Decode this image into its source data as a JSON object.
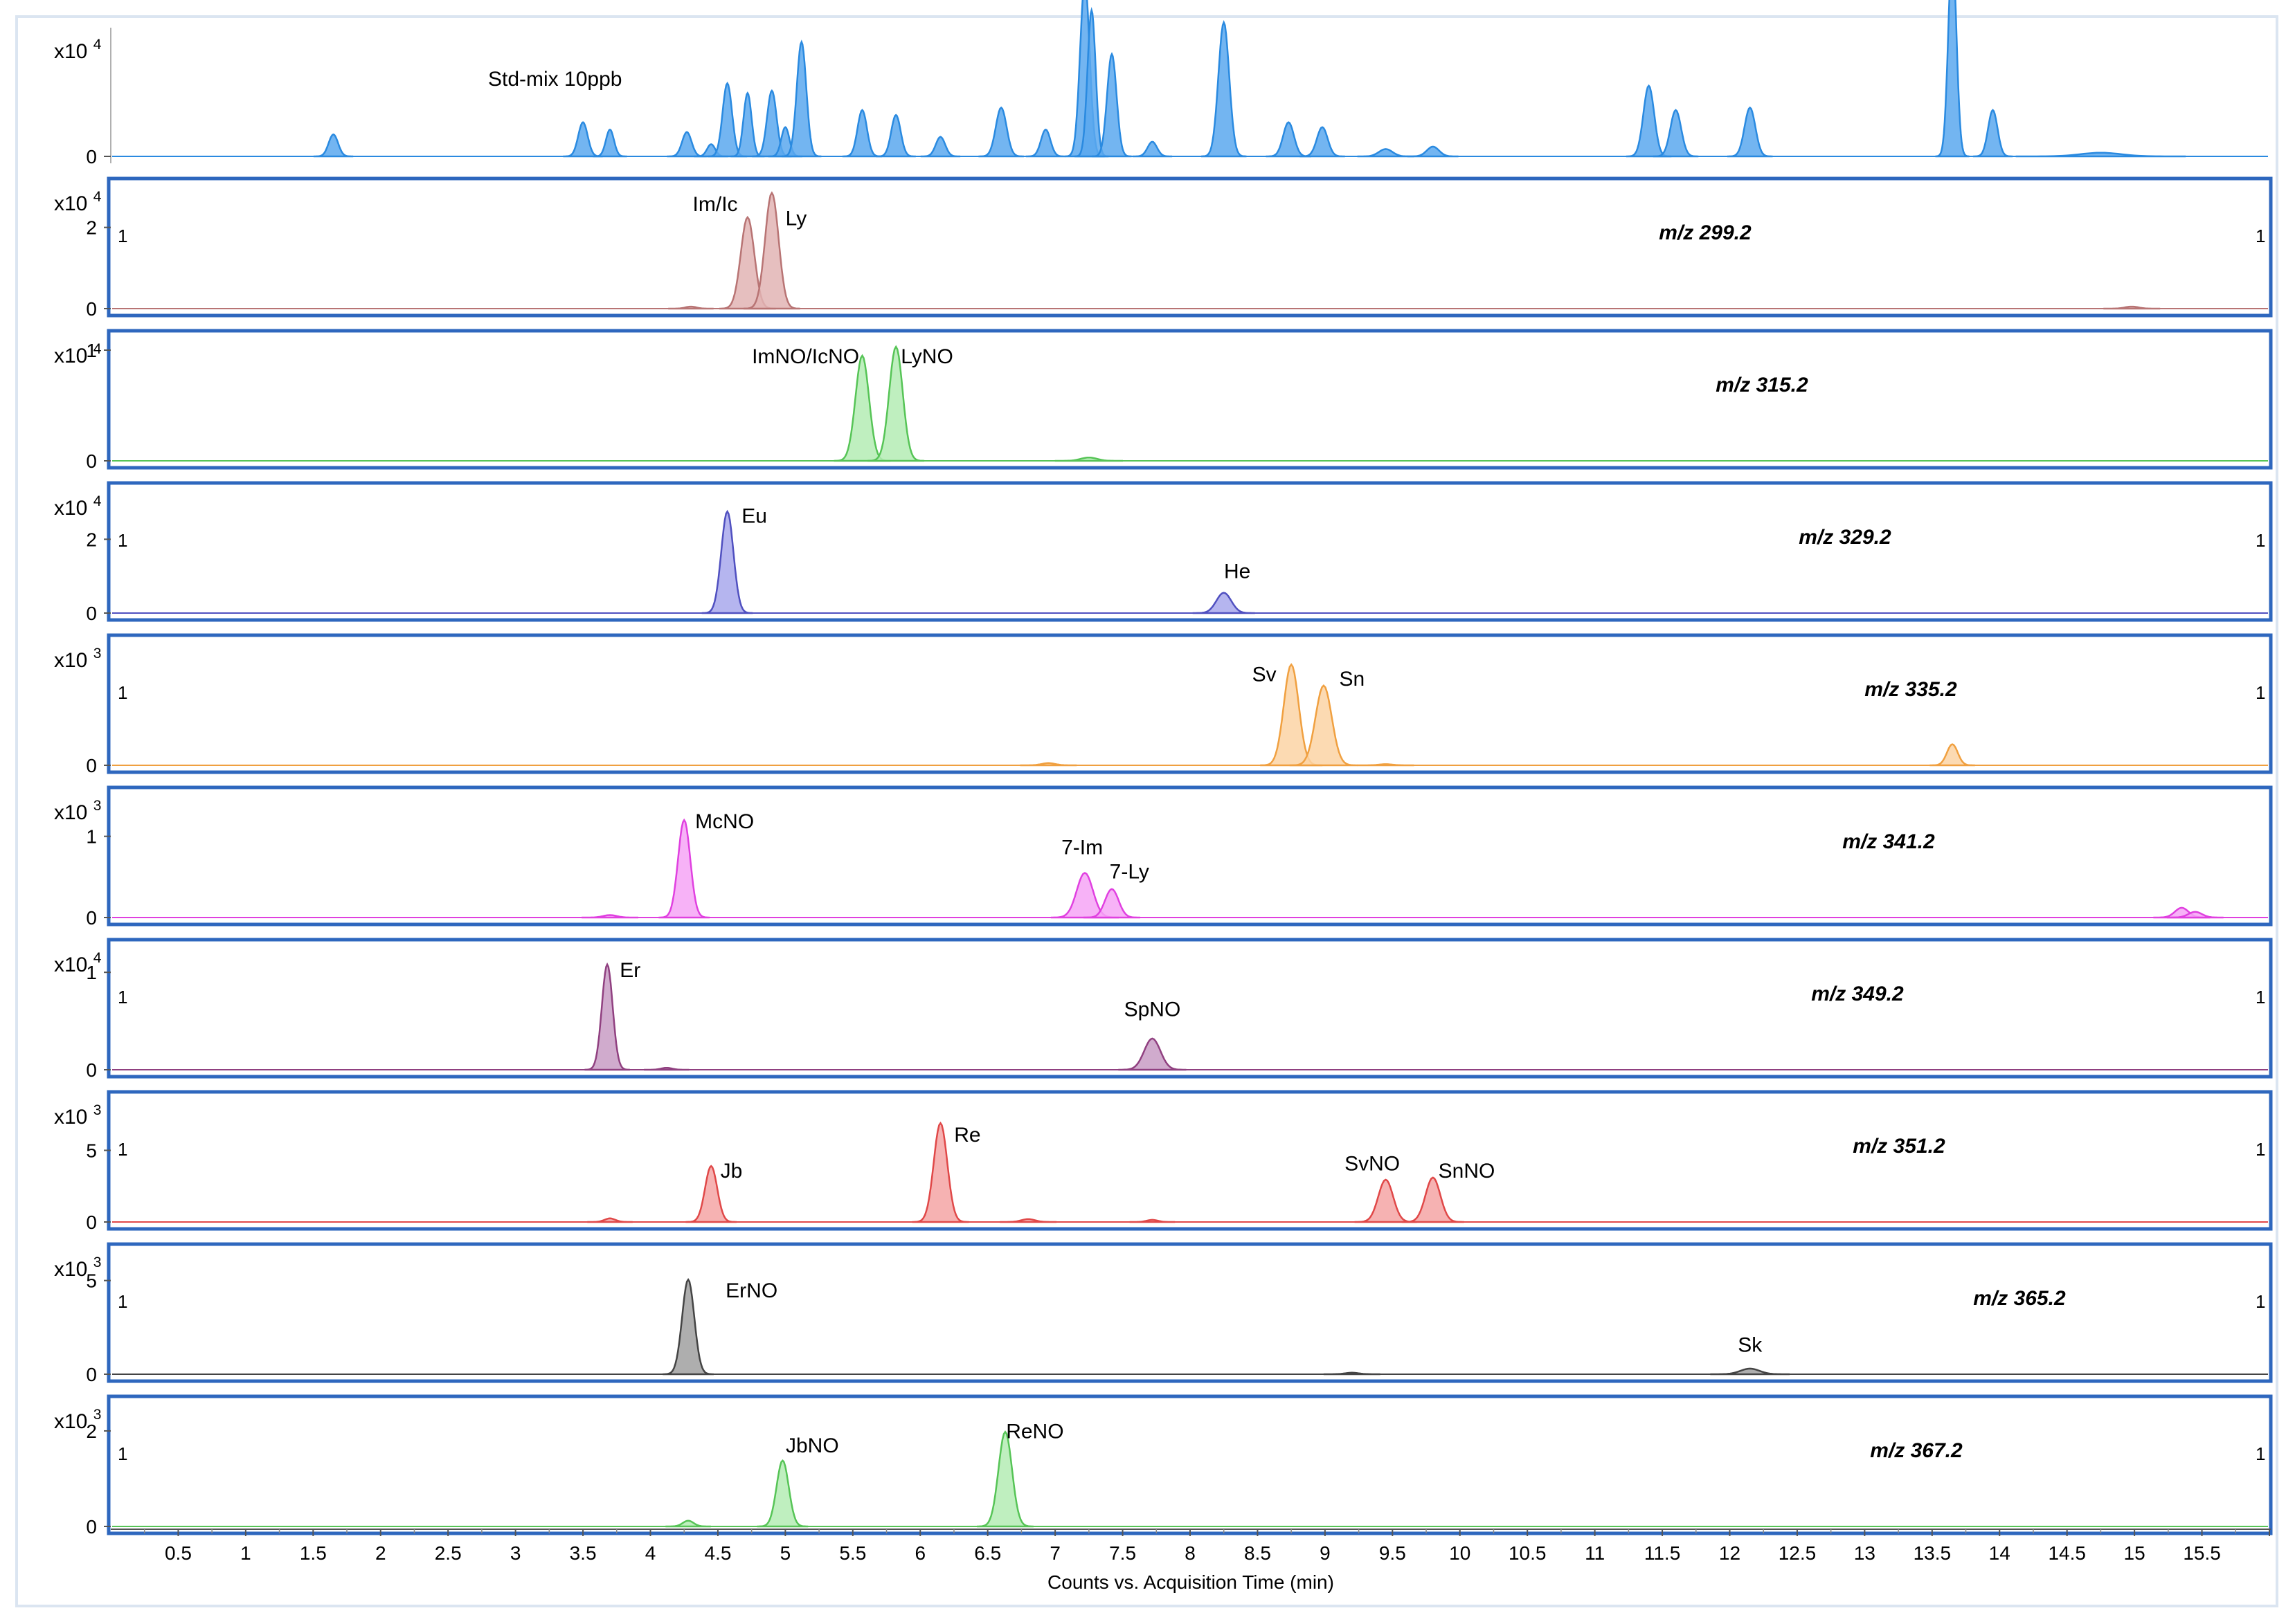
{
  "chart_data": {
    "type": "line",
    "title": "",
    "xlabel": "Counts vs. Acquisition Time (min)",
    "xlim": [
      0,
      16.0
    ],
    "x_ticks": [
      "0.5",
      "1",
      "1.5",
      "2",
      "2.5",
      "3",
      "3.5",
      "4",
      "4.5",
      "5",
      "5.5",
      "6",
      "6.5",
      "7",
      "7.5",
      "8",
      "8.5",
      "9",
      "9.5",
      "10",
      "10.5",
      "11",
      "11.5",
      "12",
      "12.5",
      "13",
      "13.5",
      "14",
      "14.5",
      "15",
      "15.5"
    ],
    "colors": {
      "frame": "#dbe5f1",
      "panel_border": "#2e67be",
      "tic": "#2a8ae0",
      "label": "#000000"
    },
    "panels": [
      {
        "label": "Std-mix 10ppb",
        "mz": "",
        "exp": "4",
        "color": "#2a8ae0",
        "fill": "#5aa8ee",
        "ymax": 5,
        "yticks": [
          0
        ],
        "bordered": false,
        "marker": "",
        "peaks": [
          {
            "rt": 1.65,
            "h": 0.9,
            "w": 0.035
          },
          {
            "rt": 3.5,
            "h": 1.4,
            "w": 0.035
          },
          {
            "rt": 3.7,
            "h": 1.1,
            "w": 0.03
          },
          {
            "rt": 4.27,
            "h": 1.0,
            "w": 0.035
          },
          {
            "rt": 4.45,
            "h": 0.5,
            "w": 0.03
          },
          {
            "rt": 4.57,
            "h": 3.0,
            "w": 0.035
          },
          {
            "rt": 4.72,
            "h": 2.6,
            "w": 0.03
          },
          {
            "rt": 4.9,
            "h": 2.7,
            "w": 0.035
          },
          {
            "rt": 5.0,
            "h": 1.2,
            "w": 0.03
          },
          {
            "rt": 5.12,
            "h": 4.7,
            "w": 0.035
          },
          {
            "rt": 5.57,
            "h": 1.9,
            "w": 0.035
          },
          {
            "rt": 5.82,
            "h": 1.7,
            "w": 0.035
          },
          {
            "rt": 6.15,
            "h": 0.8,
            "w": 0.035
          },
          {
            "rt": 6.6,
            "h": 2.0,
            "w": 0.04
          },
          {
            "rt": 6.93,
            "h": 1.1,
            "w": 0.035
          },
          {
            "rt": 7.22,
            "h": 7.2,
            "w": 0.035
          },
          {
            "rt": 7.27,
            "h": 6.0,
            "w": 0.03
          },
          {
            "rt": 7.42,
            "h": 4.2,
            "w": 0.035
          },
          {
            "rt": 7.72,
            "h": 0.6,
            "w": 0.035
          },
          {
            "rt": 8.25,
            "h": 5.5,
            "w": 0.04
          },
          {
            "rt": 8.73,
            "h": 1.4,
            "w": 0.04
          },
          {
            "rt": 8.98,
            "h": 1.2,
            "w": 0.04
          },
          {
            "rt": 9.45,
            "h": 0.3,
            "w": 0.05
          },
          {
            "rt": 9.8,
            "h": 0.4,
            "w": 0.045
          },
          {
            "rt": 11.4,
            "h": 2.9,
            "w": 0.04
          },
          {
            "rt": 11.6,
            "h": 1.9,
            "w": 0.04
          },
          {
            "rt": 12.15,
            "h": 2.0,
            "w": 0.04
          },
          {
            "rt": 13.65,
            "h": 8.5,
            "w": 0.03
          },
          {
            "rt": 13.95,
            "h": 1.9,
            "w": 0.035
          },
          {
            "rt": 14.75,
            "h": 0.15,
            "w": 0.15
          }
        ],
        "annotations": []
      },
      {
        "label": "",
        "mz": "m/z 299.2",
        "exp": "4",
        "color": "#b87474",
        "fill": "#e2b4b4",
        "ymax": 3,
        "yticks": [
          2,
          0
        ],
        "bordered": true,
        "marker": "1",
        "peaks": [
          {
            "rt": 4.3,
            "h": 0.05,
            "w": 0.04
          },
          {
            "rt": 4.72,
            "h": 2.25,
            "w": 0.05
          },
          {
            "rt": 4.9,
            "h": 2.85,
            "w": 0.05
          },
          {
            "rt": 14.98,
            "h": 0.05,
            "w": 0.05
          }
        ],
        "annotations": [
          {
            "text": "Im/Ic",
            "rt": 4.48,
            "y": 2.4
          },
          {
            "text": "Ly",
            "rt": 5.08,
            "y": 2.05
          }
        ]
      },
      {
        "label": "",
        "mz": "m/z 315.2",
        "exp": "4",
        "color": "#56c456",
        "fill": "#b4ecb4",
        "ymax": 1.1,
        "yticks": [
          1,
          0
        ],
        "bordered": true,
        "marker": "",
        "peaks": [
          {
            "rt": 5.57,
            "h": 0.95,
            "w": 0.05
          },
          {
            "rt": 5.82,
            "h": 1.03,
            "w": 0.05
          },
          {
            "rt": 7.25,
            "h": 0.03,
            "w": 0.06
          }
        ],
        "annotations": [
          {
            "text": "ImNO/IcNO",
            "rt": 5.15,
            "y": 0.88
          },
          {
            "text": "LyNO",
            "rt": 6.05,
            "y": 0.88
          }
        ]
      },
      {
        "label": "",
        "mz": "m/z 329.2",
        "exp": "4",
        "color": "#5050c0",
        "fill": "#a8a8ec",
        "ymax": 3.3,
        "yticks": [
          2,
          0
        ],
        "bordered": true,
        "marker": "1",
        "peaks": [
          {
            "rt": 4.57,
            "h": 2.75,
            "w": 0.045
          },
          {
            "rt": 8.25,
            "h": 0.55,
            "w": 0.055
          }
        ],
        "annotations": [
          {
            "text": "Eu",
            "rt": 4.77,
            "y": 2.45
          },
          {
            "text": "He",
            "rt": 8.35,
            "y": 0.95
          }
        ]
      },
      {
        "label": "",
        "mz": "m/z 335.2",
        "exp": "3",
        "color": "#f0a040",
        "fill": "#fbd4a4",
        "ymax": 5.5,
        "yticks": [
          0
        ],
        "bordered": true,
        "marker": "1",
        "peaks": [
          {
            "rt": 6.95,
            "h": 0.1,
            "w": 0.05
          },
          {
            "rt": 8.75,
            "h": 4.55,
            "w": 0.055
          },
          {
            "rt": 8.99,
            "h": 3.6,
            "w": 0.06
          },
          {
            "rt": 9.45,
            "h": 0.05,
            "w": 0.05
          },
          {
            "rt": 13.65,
            "h": 0.95,
            "w": 0.04
          }
        ],
        "annotations": [
          {
            "text": "Sv",
            "rt": 8.55,
            "y": 3.8
          },
          {
            "text": "Sn",
            "rt": 9.2,
            "y": 3.6
          }
        ]
      },
      {
        "label": "",
        "mz": "m/z 341.2",
        "exp": "3",
        "color": "#e040e0",
        "fill": "#f6a4f6",
        "ymax": 1.5,
        "yticks": [
          1,
          0
        ],
        "bordered": true,
        "marker": "",
        "peaks": [
          {
            "rt": 3.7,
            "h": 0.03,
            "w": 0.05
          },
          {
            "rt": 4.25,
            "h": 1.2,
            "w": 0.045
          },
          {
            "rt": 7.22,
            "h": 0.55,
            "w": 0.06
          },
          {
            "rt": 7.42,
            "h": 0.35,
            "w": 0.05
          },
          {
            "rt": 15.35,
            "h": 0.12,
            "w": 0.05
          },
          {
            "rt": 15.45,
            "h": 0.07,
            "w": 0.05
          }
        ],
        "annotations": [
          {
            "text": "McNO",
            "rt": 4.55,
            "y": 1.1
          },
          {
            "text": "7-Im",
            "rt": 7.2,
            "y": 0.78
          },
          {
            "text": "7-Ly",
            "rt": 7.55,
            "y": 0.48
          }
        ]
      },
      {
        "label": "",
        "mz": "m/z 349.2",
        "exp": "4",
        "color": "#904080",
        "fill": "#c89cc4",
        "ymax": 1.25,
        "yticks": [
          1,
          0
        ],
        "bordered": true,
        "marker": "1",
        "peaks": [
          {
            "rt": 3.68,
            "h": 1.08,
            "w": 0.04
          },
          {
            "rt": 4.12,
            "h": 0.02,
            "w": 0.04
          },
          {
            "rt": 7.72,
            "h": 0.32,
            "w": 0.06
          }
        ],
        "annotations": [
          {
            "text": "Er",
            "rt": 3.85,
            "y": 0.95
          },
          {
            "text": "SpNO",
            "rt": 7.72,
            "y": 0.55
          }
        ]
      },
      {
        "label": "",
        "mz": "m/z 351.2",
        "exp": "3",
        "color": "#e04848",
        "fill": "#f4a4a4",
        "ymax": 8.5,
        "yticks": [
          5,
          0
        ],
        "bordered": true,
        "marker": "1",
        "peaks": [
          {
            "rt": 3.7,
            "h": 0.25,
            "w": 0.04
          },
          {
            "rt": 4.45,
            "h": 3.9,
            "w": 0.045
          },
          {
            "rt": 6.15,
            "h": 6.9,
            "w": 0.05
          },
          {
            "rt": 6.8,
            "h": 0.2,
            "w": 0.05
          },
          {
            "rt": 7.72,
            "h": 0.15,
            "w": 0.04
          },
          {
            "rt": 9.45,
            "h": 2.95,
            "w": 0.055
          },
          {
            "rt": 9.8,
            "h": 3.1,
            "w": 0.055
          }
        ],
        "annotations": [
          {
            "text": "Jb",
            "rt": 4.6,
            "y": 3.1
          },
          {
            "text": "Re",
            "rt": 6.35,
            "y": 5.6
          },
          {
            "text": "SvNO",
            "rt": 9.35,
            "y": 3.6
          },
          {
            "text": "SnNO",
            "rt": 10.05,
            "y": 3.1
          }
        ]
      },
      {
        "label": "",
        "mz": "m/z 365.2",
        "exp": "3",
        "color": "#444444",
        "fill": "#a0a0a0",
        "ymax": 6.5,
        "yticks": [
          5,
          0
        ],
        "bordered": true,
        "marker": "1",
        "peaks": [
          {
            "rt": 4.28,
            "h": 5.05,
            "w": 0.045
          },
          {
            "rt": 9.2,
            "h": 0.08,
            "w": 0.05
          },
          {
            "rt": 12.15,
            "h": 0.3,
            "w": 0.07
          }
        ],
        "annotations": [
          {
            "text": "ErNO",
            "rt": 4.75,
            "y": 4.1
          },
          {
            "text": "Sk",
            "rt": 12.15,
            "y": 1.2
          }
        ]
      },
      {
        "label": "",
        "mz": "m/z 367.2",
        "exp": "3",
        "color": "#56c456",
        "fill": "#b4ecb4",
        "ymax": 2.55,
        "yticks": [
          2,
          0
        ],
        "bordered": true,
        "marker": "1",
        "peaks": [
          {
            "rt": 4.28,
            "h": 0.12,
            "w": 0.04
          },
          {
            "rt": 4.98,
            "h": 1.38,
            "w": 0.045
          },
          {
            "rt": 6.63,
            "h": 1.98,
            "w": 0.05
          }
        ],
        "annotations": [
          {
            "text": "JbNO",
            "rt": 5.2,
            "y": 1.55
          },
          {
            "text": "ReNO",
            "rt": 6.85,
            "y": 1.85
          }
        ]
      }
    ]
  }
}
